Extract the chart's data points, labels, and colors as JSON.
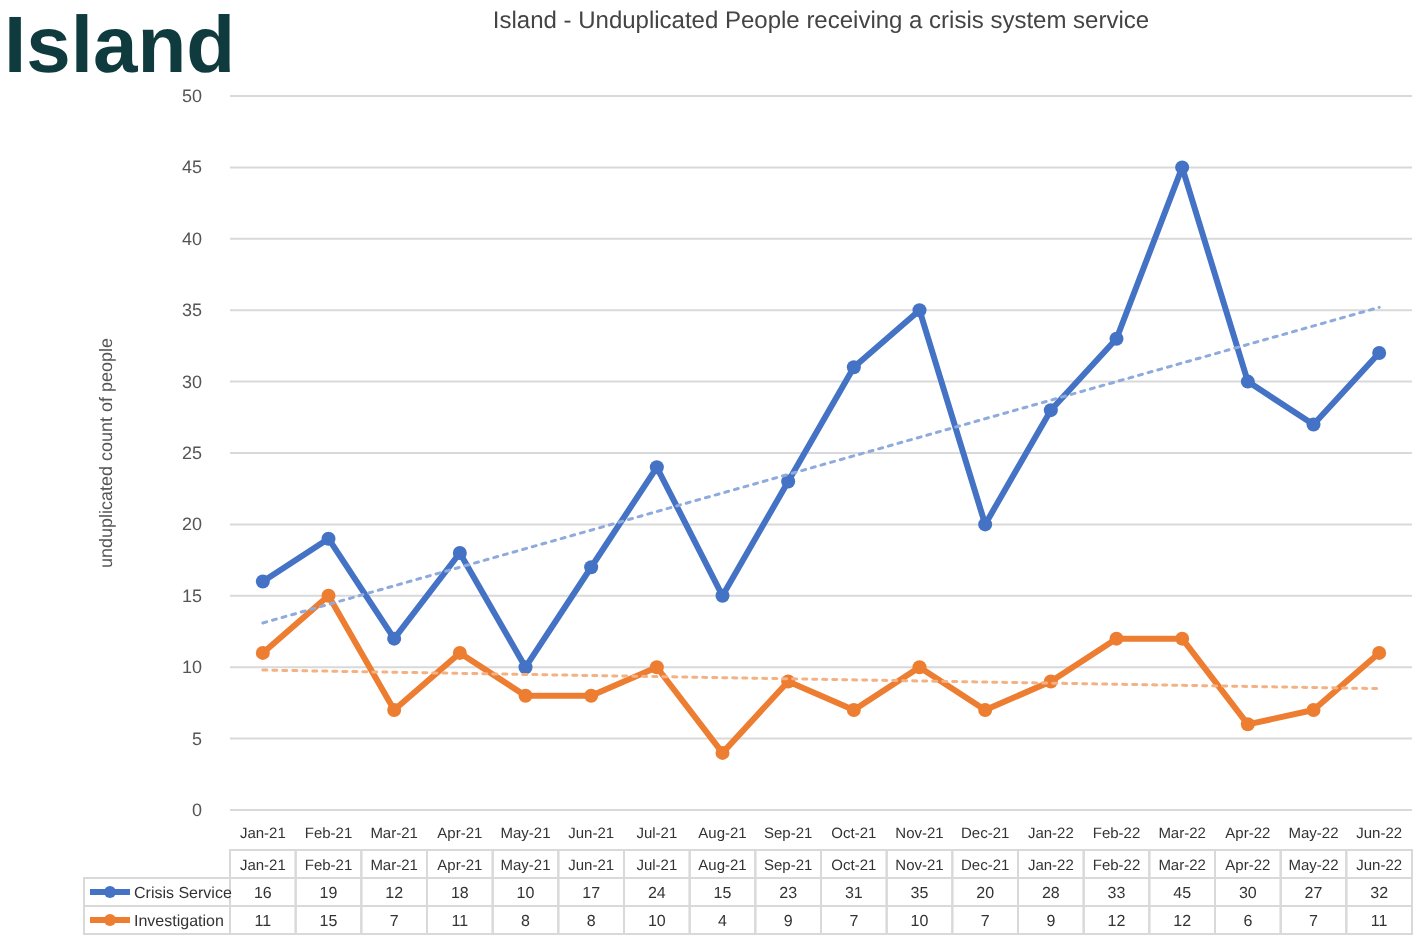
{
  "chart_data": {
    "type": "line",
    "title": "Island",
    "subtitle": "Island - Unduplicated People receiving a crisis system service",
    "ylabel": "unduplicated count of people",
    "categories": [
      "Jan-21",
      "Feb-21",
      "Mar-21",
      "Apr-21",
      "May-21",
      "Jun-21",
      "Jul-21",
      "Aug-21",
      "Sep-21",
      "Oct-21",
      "Nov-21",
      "Dec-21",
      "Jan-22",
      "Feb-22",
      "Mar-22",
      "Apr-22",
      "May-22",
      "Jun-22"
    ],
    "series": [
      {
        "name": "Crisis Service",
        "color": "#4472c4",
        "values": [
          16,
          19,
          12,
          18,
          10,
          17,
          24,
          15,
          23,
          31,
          35,
          20,
          28,
          33,
          45,
          30,
          27,
          32
        ],
        "value_labels": [
          "16",
          "19",
          "12",
          "18",
          "10",
          "17",
          "24",
          "15",
          "23",
          "31",
          "35",
          "20",
          "28",
          "33",
          "45",
          "30",
          "27",
          "32"
        ],
        "marker": "circle",
        "line_style": "solid"
      },
      {
        "name": "Investigation",
        "color": "#ed7d31",
        "values": [
          11,
          15,
          7,
          11,
          8,
          8,
          10,
          4,
          9,
          7,
          10,
          7,
          9,
          12,
          12,
          6,
          7,
          11
        ],
        "value_labels": [
          "11",
          "15",
          "7",
          "11",
          "8",
          "8",
          "10",
          "4",
          "9",
          "7",
          "10",
          "7",
          "9",
          "12",
          "12",
          "6",
          "7",
          "11"
        ],
        "marker": "circle",
        "line_style": "solid"
      },
      {
        "color": "#8faadc",
        "x": [
          "Jan-21",
          "Jun-22"
        ],
        "values": [
          13.1,
          35.2
        ],
        "marker": "none",
        "line_style": "dotted"
      },
      {
        "color": "#f4b183",
        "x": [
          "Jan-21",
          "Jun-22"
        ],
        "values": [
          9.8,
          8.5
        ],
        "marker": "none",
        "line_style": "dotted"
      }
    ],
    "ylim": [
      0,
      50
    ],
    "yticks": [
      0,
      5,
      10,
      15,
      20,
      25,
      30,
      35,
      40,
      45,
      50
    ],
    "grid": "y",
    "legend": "bottom"
  }
}
